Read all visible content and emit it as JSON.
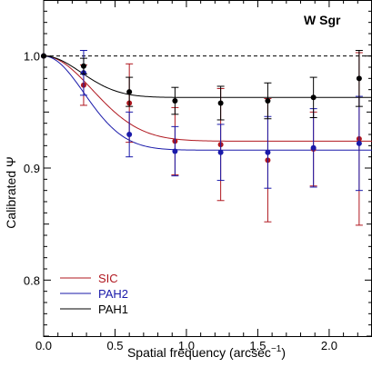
{
  "chart_data": {
    "type": "scatter",
    "title": "W Sgr",
    "xlabel": "Spatial frequency (arcsec",
    "xlabel_sup": "−1",
    "xlabel_close": ")",
    "ylabel": "Calibrated Ψ",
    "xlim": [
      0.0,
      2.3
    ],
    "ylim": [
      0.75,
      1.05
    ],
    "xticks": [
      0.0,
      0.5,
      1.0,
      1.5,
      2.0
    ],
    "xtick_labels": [
      "0.0",
      "0.5",
      "1.0",
      "1.5",
      "2.0"
    ],
    "yticks": [
      0.8,
      0.9,
      1.0
    ],
    "ytick_labels": [
      "0.8",
      "0.9",
      "1.0"
    ],
    "reference_line": 1.0,
    "legend_position": "lower-left",
    "series": [
      {
        "name": "SIC",
        "color": "#b0171f",
        "plateau": 0.924,
        "width": 0.48,
        "points": [
          {
            "x": 0.0,
            "y": 1.0,
            "err": 0.0
          },
          {
            "x": 0.28,
            "y": 0.974,
            "err": 0.018
          },
          {
            "x": 0.6,
            "y": 0.958,
            "err": 0.035
          },
          {
            "x": 0.92,
            "y": 0.924,
            "err": 0.03
          },
          {
            "x": 1.24,
            "y": 0.921,
            "err": 0.05
          },
          {
            "x": 1.57,
            "y": 0.907,
            "err": 0.055
          },
          {
            "x": 1.89,
            "y": 0.917,
            "err": 0.033
          },
          {
            "x": 2.21,
            "y": 0.926,
            "err": 0.077
          }
        ]
      },
      {
        "name": "PAH2",
        "color": "#1a1aaa",
        "plateau": 0.916,
        "width": 0.4,
        "points": [
          {
            "x": 0.0,
            "y": 1.0,
            "err": 0.0
          },
          {
            "x": 0.28,
            "y": 0.985,
            "err": 0.02
          },
          {
            "x": 0.6,
            "y": 0.93,
            "err": 0.02
          },
          {
            "x": 0.92,
            "y": 0.915,
            "err": 0.022
          },
          {
            "x": 1.24,
            "y": 0.914,
            "err": 0.025
          },
          {
            "x": 1.57,
            "y": 0.914,
            "err": 0.032
          },
          {
            "x": 1.89,
            "y": 0.918,
            "err": 0.035
          },
          {
            "x": 2.21,
            "y": 0.922,
            "err": 0.042
          }
        ]
      },
      {
        "name": "PAH1",
        "color": "#000000",
        "plateau": 0.963,
        "width": 0.37,
        "points": [
          {
            "x": 0.0,
            "y": 1.0,
            "err": 0.0
          },
          {
            "x": 0.28,
            "y": 0.991,
            "err": 0.007
          },
          {
            "x": 0.6,
            "y": 0.968,
            "err": 0.013
          },
          {
            "x": 0.92,
            "y": 0.96,
            "err": 0.012
          },
          {
            "x": 1.24,
            "y": 0.958,
            "err": 0.015
          },
          {
            "x": 1.57,
            "y": 0.96,
            "err": 0.016
          },
          {
            "x": 1.89,
            "y": 0.963,
            "err": 0.018
          },
          {
            "x": 2.21,
            "y": 0.98,
            "err": 0.025
          }
        ]
      }
    ]
  }
}
